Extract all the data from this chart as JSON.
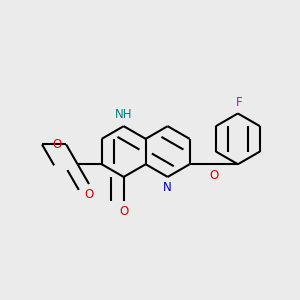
{
  "background_color": "#ebebeb",
  "bond_color": "#000000",
  "bond_width": 1.5,
  "atom_colors": {
    "N": "#0000cc",
    "O": "#dd0000",
    "F": "#cc00cc",
    "NH": "#008080"
  },
  "font_size": 8.5,
  "BL": 0.082
}
